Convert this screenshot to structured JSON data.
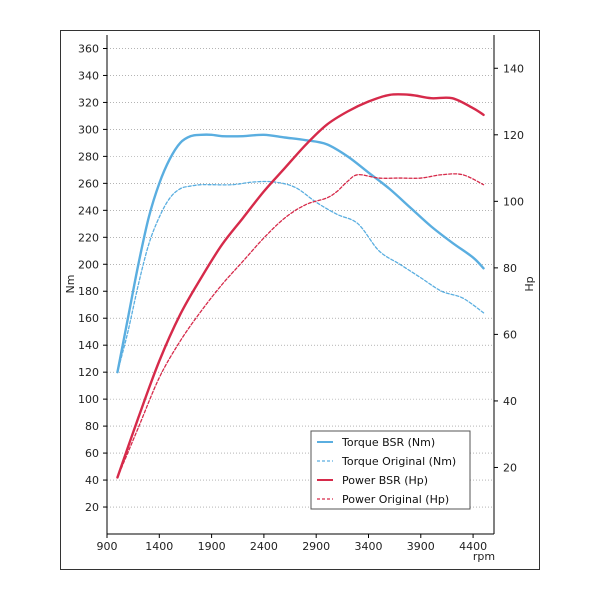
{
  "chart_data": {
    "type": "line",
    "xlabel": "rpm",
    "ylabel_left": "Nm",
    "ylabel_right": "Hp",
    "xlim": [
      900,
      4600
    ],
    "ylim_left": [
      0,
      370
    ],
    "ylim_right": [
      0,
      150
    ],
    "xticks": [
      900,
      1400,
      1900,
      2400,
      2900,
      3400,
      3900,
      4400
    ],
    "yticks_left": [
      20,
      40,
      60,
      80,
      100,
      120,
      140,
      160,
      180,
      200,
      220,
      240,
      260,
      280,
      300,
      320,
      340,
      360
    ],
    "yticks_right": [
      20,
      40,
      60,
      80,
      100,
      120,
      140
    ],
    "grid": {
      "horizontal": true,
      "vertical": false,
      "style": "dotted"
    },
    "legend_position": "bottom-right",
    "series": [
      {
        "name": "Torque BSR (Nm)",
        "axis": "left",
        "color": "#5aaee0",
        "dashed": false,
        "points": [
          [
            1000,
            120
          ],
          [
            1100,
            160
          ],
          [
            1200,
            200
          ],
          [
            1300,
            235
          ],
          [
            1400,
            260
          ],
          [
            1500,
            278
          ],
          [
            1600,
            290
          ],
          [
            1700,
            295
          ],
          [
            1800,
            296
          ],
          [
            1900,
            296
          ],
          [
            2000,
            295
          ],
          [
            2200,
            295
          ],
          [
            2400,
            296
          ],
          [
            2600,
            294
          ],
          [
            2800,
            292
          ],
          [
            3000,
            289
          ],
          [
            3200,
            280
          ],
          [
            3400,
            268
          ],
          [
            3600,
            256
          ],
          [
            3800,
            242
          ],
          [
            4000,
            228
          ],
          [
            4200,
            216
          ],
          [
            4400,
            205
          ],
          [
            4500,
            197
          ]
        ]
      },
      {
        "name": "Torque Original (Nm)",
        "axis": "left",
        "color": "#5aaee0",
        "dashed": true,
        "points": [
          [
            1000,
            120
          ],
          [
            1100,
            150
          ],
          [
            1200,
            185
          ],
          [
            1300,
            215
          ],
          [
            1400,
            235
          ],
          [
            1500,
            249
          ],
          [
            1600,
            256
          ],
          [
            1700,
            258
          ],
          [
            1800,
            259
          ],
          [
            1900,
            259
          ],
          [
            2100,
            259
          ],
          [
            2300,
            261
          ],
          [
            2500,
            261
          ],
          [
            2700,
            257
          ],
          [
            2900,
            246
          ],
          [
            3100,
            237
          ],
          [
            3300,
            230
          ],
          [
            3500,
            210
          ],
          [
            3700,
            200
          ],
          [
            3900,
            190
          ],
          [
            4100,
            180
          ],
          [
            4300,
            175
          ],
          [
            4500,
            164
          ]
        ]
      },
      {
        "name": "Power BSR (Hp)",
        "axis": "right",
        "color": "#d62a4a",
        "dashed": false,
        "points": [
          [
            1000,
            17
          ],
          [
            1200,
            35
          ],
          [
            1400,
            52
          ],
          [
            1600,
            66
          ],
          [
            1800,
            77
          ],
          [
            2000,
            87
          ],
          [
            2200,
            95
          ],
          [
            2400,
            103
          ],
          [
            2600,
            110
          ],
          [
            2800,
            117
          ],
          [
            3000,
            123
          ],
          [
            3200,
            127
          ],
          [
            3400,
            130
          ],
          [
            3600,
            132
          ],
          [
            3800,
            132
          ],
          [
            4000,
            131
          ],
          [
            4200,
            131
          ],
          [
            4400,
            128
          ],
          [
            4500,
            126
          ]
        ]
      },
      {
        "name": "Power Original (Hp)",
        "axis": "right",
        "color": "#d62a4a",
        "dashed": true,
        "points": [
          [
            1000,
            17
          ],
          [
            1200,
            32
          ],
          [
            1400,
            47
          ],
          [
            1600,
            58
          ],
          [
            1800,
            67
          ],
          [
            2000,
            75
          ],
          [
            2200,
            82
          ],
          [
            2400,
            89
          ],
          [
            2600,
            95
          ],
          [
            2800,
            99
          ],
          [
            3000,
            101
          ],
          [
            3100,
            103
          ],
          [
            3200,
            106
          ],
          [
            3300,
            108
          ],
          [
            3500,
            107
          ],
          [
            3700,
            107
          ],
          [
            3900,
            107
          ],
          [
            4100,
            108
          ],
          [
            4300,
            108
          ],
          [
            4500,
            105
          ]
        ]
      }
    ]
  },
  "colors": {
    "frame": "#333333",
    "grid": "#888888",
    "axis": "#000000"
  }
}
